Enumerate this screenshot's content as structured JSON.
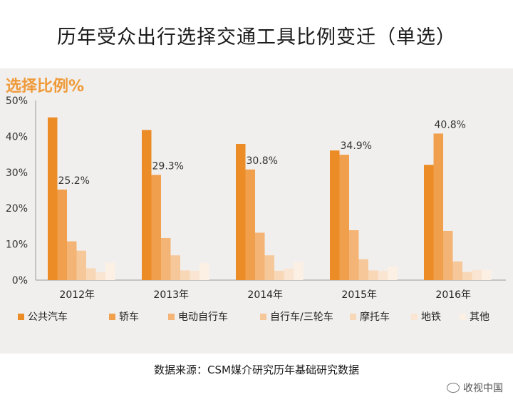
{
  "title": "历年受众出行选择交通工具比例变迁（单选）",
  "source": "数据来源：CSM媒介研究历年基础研究数据",
  "watermark": "收视中国",
  "chart_data": {
    "type": "bar",
    "ylabel": "选择比例%",
    "ylim": [
      0,
      50
    ],
    "yticks": [
      "0%",
      "10%",
      "20%",
      "30%",
      "40%",
      "50%"
    ],
    "categories": [
      "2012年",
      "2013年",
      "2014年",
      "2015年",
      "2016年"
    ],
    "series": [
      {
        "name": "公共汽车",
        "color": "#ec8c27",
        "values": [
          45.3,
          41.8,
          37.9,
          36.1,
          32.1
        ]
      },
      {
        "name": "轿车",
        "color": "#f0a04d",
        "values": [
          25.2,
          29.3,
          30.8,
          34.9,
          40.8
        ]
      },
      {
        "name": "电动自行车",
        "color": "#f3b475",
        "values": [
          10.8,
          11.7,
          13.2,
          13.9,
          13.7
        ]
      },
      {
        "name": "自行车/三轮车",
        "color": "#f6c799",
        "values": [
          8.2,
          6.9,
          6.9,
          5.8,
          5.2
        ]
      },
      {
        "name": "摩托车",
        "color": "#f8d7b7",
        "values": [
          3.3,
          2.7,
          2.6,
          2.7,
          2.3
        ]
      },
      {
        "name": "地铁",
        "color": "#fae5d2",
        "values": [
          2.2,
          2.6,
          3.2,
          2.6,
          2.8
        ]
      },
      {
        "name": "其他",
        "color": "#fcf0e4",
        "values": [
          4.8,
          4.8,
          5.0,
          3.7,
          2.8
        ]
      }
    ],
    "data_labels": [
      {
        "category": 0,
        "series": 1,
        "text": "25.2%"
      },
      {
        "category": 1,
        "series": 1,
        "text": "29.3%"
      },
      {
        "category": 2,
        "series": 1,
        "text": "30.8%"
      },
      {
        "category": 3,
        "series": 1,
        "text": "34.9%"
      },
      {
        "category": 4,
        "series": 1,
        "text": "40.8%"
      }
    ],
    "legend_position": "bottom"
  }
}
